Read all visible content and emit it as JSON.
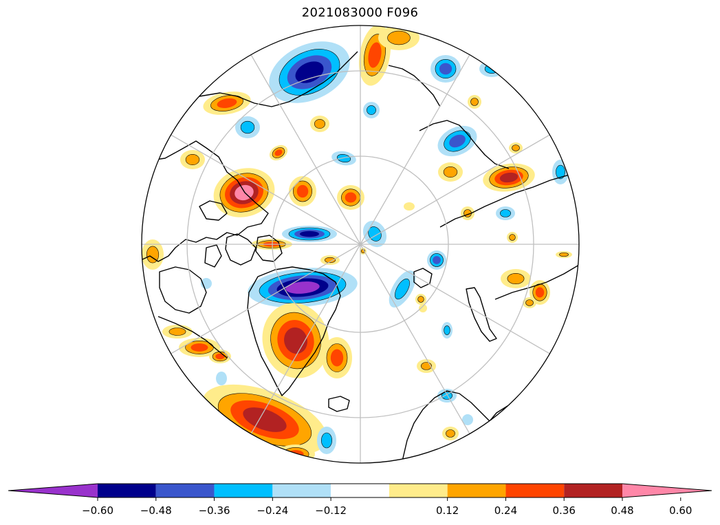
{
  "title": "2021083000 F096",
  "colorbar": {
    "extend": "both",
    "bins": [
      {
        "color": "#9932cc"
      },
      {
        "color": "#00008b"
      },
      {
        "color": "#3a56cc"
      },
      {
        "color": "#00bfff"
      },
      {
        "color": "#b0e0f7"
      },
      {
        "color": "#ffffff"
      },
      {
        "color": "#ffec8b"
      },
      {
        "color": "#ffa500"
      },
      {
        "color": "#ff4500"
      },
      {
        "color": "#b22222"
      },
      {
        "color": "#ff87a8"
      }
    ],
    "ticks": [
      "−0.60",
      "−0.48",
      "−0.36",
      "−0.24",
      "−0.12",
      "0.12",
      "0.24",
      "0.36",
      "0.48",
      "0.60"
    ]
  },
  "map": {
    "projection": "north-polar-stereographic",
    "graticule": true,
    "coastlines": true,
    "fill_colors": {
      "neg_extreme": "#9932cc",
      "neg_strong": "#00008b",
      "neg_mid": "#3a56cc",
      "neg_weak": "#00bfff",
      "neg_faint": "#b0e0f7",
      "pos_faint": "#ffec8b",
      "pos_weak": "#ffa500",
      "pos_mid": "#ff4500",
      "pos_strong": "#b22222",
      "pos_extreme": "#ff87a8"
    }
  }
}
